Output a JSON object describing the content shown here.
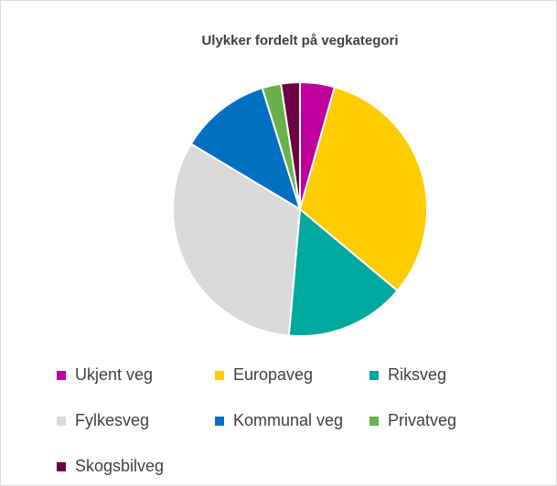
{
  "chart_data": {
    "type": "pie",
    "title": "Ulykker fordelt på vegkategori",
    "categories": [
      "Ukjent veg",
      "Europaveg",
      "Riksveg",
      "Fylkesveg",
      "Kommunal veg",
      "Privatveg",
      "Skogsbilveg"
    ],
    "values": [
      4.4,
      31.7,
      15.3,
      32.2,
      11.6,
      2.4,
      2.4
    ],
    "colors": [
      "#c0009c",
      "#ffcc00",
      "#00a99d",
      "#d9d9d9",
      "#0070c0",
      "#6ab04c",
      "#6b0042"
    ],
    "legend": "bottom"
  }
}
